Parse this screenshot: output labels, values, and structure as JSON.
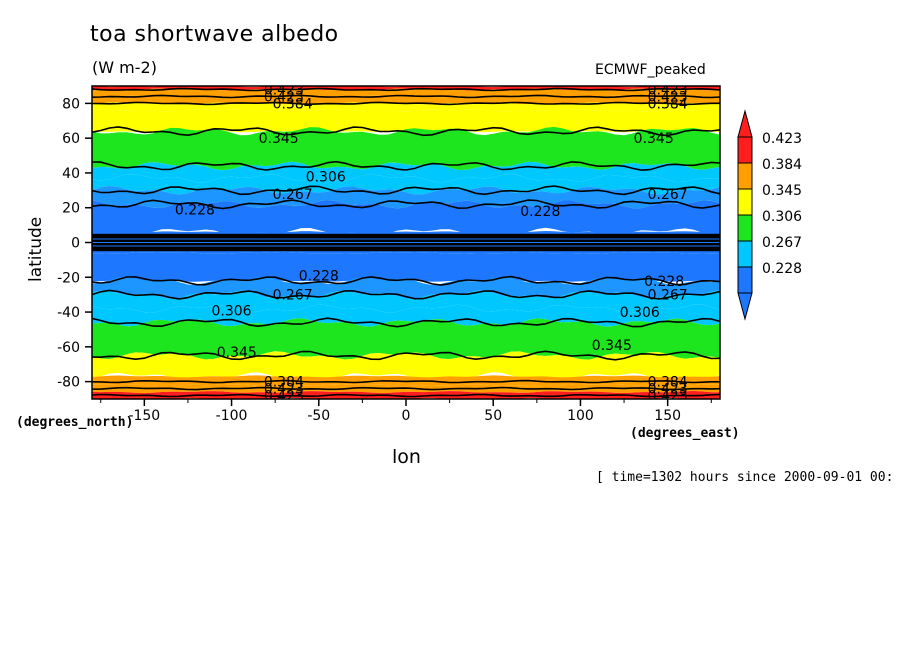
{
  "chart_data": {
    "type": "heatmap",
    "title": "toa shortwave albedo",
    "units": "(W m-2)",
    "dataset": "ECMWF_peaked",
    "xlabel": "lon",
    "ylabel": "latitude",
    "x_units": "(degrees_east)",
    "y_units": "(degrees_north)",
    "time_info": "[ time=1302 hours since 2000-09-01 00:",
    "xlim": [
      -180,
      180
    ],
    "ylim": [
      -90,
      90
    ],
    "x_ticks": [
      -150,
      -100,
      -50,
      0,
      50,
      100,
      150
    ],
    "y_ticks": [
      -80,
      -60,
      -40,
      -20,
      0,
      20,
      40,
      60,
      80
    ],
    "grid": false,
    "legend_position": "right",
    "colorbar": {
      "levels": [
        "0.228",
        "0.267",
        "0.306",
        "0.345",
        "0.384",
        "0.423"
      ],
      "colors": [
        "#1e78ff",
        "#00c8ff",
        "#1ee61e",
        "#ffff00",
        "#ffa000",
        "#ff1e1e"
      ],
      "under_color": "#1e78ff",
      "over_color": "#ff1e1e"
    },
    "bands": [
      {
        "lat_from": 90,
        "lat_to": 88,
        "color": "#ff1e1e"
      },
      {
        "lat_from": 88,
        "lat_to": 84,
        "color": "#ffa000"
      },
      {
        "lat_from": 84,
        "lat_to": 80,
        "color": "#ffa000"
      },
      {
        "lat_from": 80,
        "lat_to": 76,
        "color": "#ffff00"
      },
      {
        "lat_from": 76,
        "lat_to": 64,
        "color": "#ffff00"
      },
      {
        "lat_from": 64,
        "lat_to": 44,
        "color": "#1ee61e"
      },
      {
        "lat_from": 44,
        "lat_to": 37,
        "color": "#00c8ff"
      },
      {
        "lat_from": 37,
        "lat_to": 30,
        "color": "#00c8ff"
      },
      {
        "lat_from": 30,
        "lat_to": 22,
        "color": "#1e96ff"
      },
      {
        "lat_from": 22,
        "lat_to": 6,
        "color": "#1e78ff"
      },
      {
        "lat_from": 6,
        "lat_to": -6,
        "color": "#1e78ff"
      },
      {
        "lat_from": -6,
        "lat_to": -22,
        "color": "#1e78ff"
      },
      {
        "lat_from": -22,
        "lat_to": -30,
        "color": "#1e96ff"
      },
      {
        "lat_from": -30,
        "lat_to": -38,
        "color": "#00c8ff"
      },
      {
        "lat_from": -38,
        "lat_to": -46,
        "color": "#00c8ff"
      },
      {
        "lat_from": -46,
        "lat_to": -65,
        "color": "#1ee61e"
      },
      {
        "lat_from": -65,
        "lat_to": -77,
        "color": "#ffff00"
      },
      {
        "lat_from": -77,
        "lat_to": -82,
        "color": "#ffa000"
      },
      {
        "lat_from": -82,
        "lat_to": -86,
        "color": "#ffa000"
      },
      {
        "lat_from": -86,
        "lat_to": -90,
        "color": "#ff1e1e"
      }
    ],
    "contours": [
      {
        "lat": 88,
        "level": "0.423"
      },
      {
        "lat": 84,
        "level": "0.423"
      },
      {
        "lat": 80,
        "level": "0.384"
      },
      {
        "lat": 64,
        "level": "0.345"
      },
      {
        "lat": 44,
        "level": "0.306"
      },
      {
        "lat": 30,
        "level": "0.267"
      },
      {
        "lat": 22,
        "level": "0.228"
      },
      {
        "lat": -22,
        "level": "0.228"
      },
      {
        "lat": -30,
        "level": "0.267"
      },
      {
        "lat": -46,
        "level": "0.306"
      },
      {
        "lat": -65,
        "level": "0.345"
      },
      {
        "lat": -80,
        "level": "0.384"
      },
      {
        "lat": -84,
        "level": "0.423"
      },
      {
        "lat": -88,
        "level": "0.423"
      }
    ],
    "contour_labels": [
      {
        "lon": -70,
        "lat": 88,
        "text": "0.423"
      },
      {
        "lon": -70,
        "lat": 84,
        "text": "0.423"
      },
      {
        "lon": -65,
        "lat": 80,
        "text": "0.384"
      },
      {
        "lon": -73,
        "lat": 60,
        "text": "0.345"
      },
      {
        "lon": -46,
        "lat": 38,
        "text": "0.306"
      },
      {
        "lon": -65,
        "lat": 28,
        "text": "0.267"
      },
      {
        "lon": -121,
        "lat": 19,
        "text": "0.228"
      },
      {
        "lon": 77,
        "lat": 18,
        "text": "0.228"
      },
      {
        "lon": 150,
        "lat": 88,
        "text": "0.423"
      },
      {
        "lon": 150,
        "lat": 84,
        "text": "0.423"
      },
      {
        "lon": 150,
        "lat": 80,
        "text": "0.384"
      },
      {
        "lon": 142,
        "lat": 60,
        "text": "0.345"
      },
      {
        "lon": 150,
        "lat": 28,
        "text": "0.267"
      },
      {
        "lon": -50,
        "lat": -19,
        "text": "0.228"
      },
      {
        "lon": 148,
        "lat": -22,
        "text": "0.228"
      },
      {
        "lon": -65,
        "lat": -30,
        "text": "0.267"
      },
      {
        "lon": 150,
        "lat": -30,
        "text": "0.267"
      },
      {
        "lon": -100,
        "lat": -39,
        "text": "0.306"
      },
      {
        "lon": 134,
        "lat": -40,
        "text": "0.306"
      },
      {
        "lon": -97,
        "lat": -63,
        "text": "0.345"
      },
      {
        "lon": 118,
        "lat": -59,
        "text": "0.345"
      },
      {
        "lon": -70,
        "lat": -80,
        "text": "0.384"
      },
      {
        "lon": 150,
        "lat": -80,
        "text": "0.384"
      },
      {
        "lon": -70,
        "lat": -84,
        "text": "0.423"
      },
      {
        "lon": 150,
        "lat": -84,
        "text": "0.423"
      },
      {
        "lon": -70,
        "lat": -88,
        "text": "0.423"
      },
      {
        "lon": 150,
        "lat": -88,
        "text": "0.423"
      }
    ],
    "equatorial_band": {
      "lat_from": 5,
      "lat_to": -5,
      "color": "#000000"
    }
  }
}
